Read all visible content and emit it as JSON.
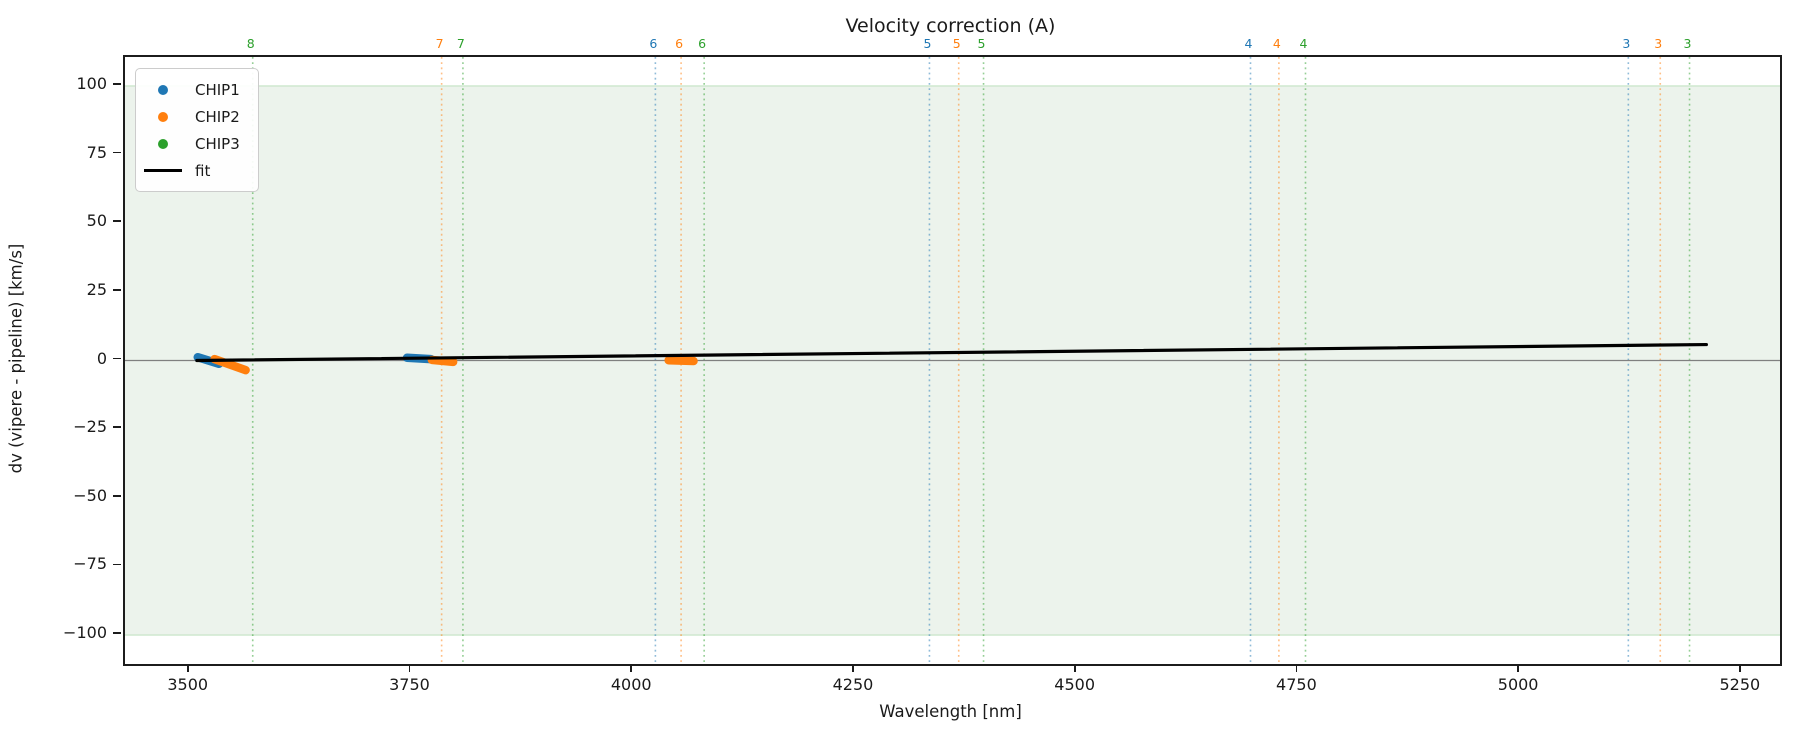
{
  "chart_data": {
    "type": "scatter",
    "title": "Velocity correction (A)",
    "xlabel": "Wavelength [nm]",
    "ylabel": "dv (vipere - pipeline) [km/s]",
    "xlim": [
      3427,
      5293
    ],
    "ylim": [
      -110.5,
      110.5
    ],
    "xticks": [
      3500,
      3750,
      4000,
      4250,
      4500,
      4750,
      5000,
      5250
    ],
    "yticks": [
      100,
      75,
      50,
      25,
      0,
      -25,
      -50,
      -75,
      -100
    ],
    "grid": false,
    "legend_position": "upper-left",
    "band": {
      "ymin": -100,
      "ymax": 100,
      "fill": "#ecf3ec",
      "edge_color": "#2ca02c",
      "edge_opacity": 0.22
    },
    "zero_line": {
      "y": 0,
      "color": "#808080"
    },
    "series": [
      {
        "name": "CHIP1",
        "color": "#1f77b4",
        "marker": "dot",
        "segments": [
          {
            "x1": 3509,
            "y1": 1.2,
            "x2": 3533,
            "y2": -1.2
          },
          {
            "x1": 3745,
            "y1": 1.0,
            "x2": 3772,
            "y2": 0.5
          }
        ]
      },
      {
        "name": "CHIP2",
        "color": "#ff7f0e",
        "marker": "dot",
        "segments": [
          {
            "x1": 3528,
            "y1": 0.5,
            "x2": 3563,
            "y2": -3.5
          },
          {
            "x1": 3773,
            "y1": 0.2,
            "x2": 3797,
            "y2": -0.5
          },
          {
            "x1": 4040,
            "y1": 0.1,
            "x2": 4068,
            "y2": -0.2
          }
        ]
      },
      {
        "name": "CHIP3",
        "color": "#2ca02c",
        "marker": "dot",
        "segments": []
      }
    ],
    "fit": {
      "name": "fit",
      "color": "#000000",
      "points": [
        [
          3508,
          0.0
        ],
        [
          5210,
          5.8
        ]
      ]
    },
    "order_lines": [
      {
        "label": "8",
        "chip": "CHIP3",
        "wavelength": 3571,
        "color": "#2ca02c"
      },
      {
        "label": "7",
        "chip": "CHIP2",
        "wavelength": 3784,
        "color": "#ff7f0e"
      },
      {
        "label": "7",
        "chip": "CHIP3",
        "wavelength": 3808,
        "color": "#2ca02c"
      },
      {
        "label": "6",
        "chip": "CHIP1",
        "wavelength": 4025,
        "color": "#1f77b4"
      },
      {
        "label": "6",
        "chip": "CHIP2",
        "wavelength": 4054,
        "color": "#ff7f0e"
      },
      {
        "label": "6",
        "chip": "CHIP3",
        "wavelength": 4080,
        "color": "#2ca02c"
      },
      {
        "label": "5",
        "chip": "CHIP1",
        "wavelength": 4334,
        "color": "#1f77b4"
      },
      {
        "label": "5",
        "chip": "CHIP2",
        "wavelength": 4367,
        "color": "#ff7f0e"
      },
      {
        "label": "5",
        "chip": "CHIP3",
        "wavelength": 4395,
        "color": "#2ca02c"
      },
      {
        "label": "4",
        "chip": "CHIP1",
        "wavelength": 4696,
        "color": "#1f77b4"
      },
      {
        "label": "4",
        "chip": "CHIP2",
        "wavelength": 4728,
        "color": "#ff7f0e"
      },
      {
        "label": "4",
        "chip": "CHIP3",
        "wavelength": 4758,
        "color": "#2ca02c"
      },
      {
        "label": "3",
        "chip": "CHIP1",
        "wavelength": 5122,
        "color": "#1f77b4"
      },
      {
        "label": "3",
        "chip": "CHIP2",
        "wavelength": 5158,
        "color": "#ff7f0e"
      },
      {
        "label": "3",
        "chip": "CHIP3",
        "wavelength": 5191,
        "color": "#2ca02c"
      }
    ],
    "legend": [
      {
        "label": "CHIP1",
        "color": "#1f77b4",
        "marker": "dot"
      },
      {
        "label": "CHIP2",
        "color": "#ff7f0e",
        "marker": "dot"
      },
      {
        "label": "CHIP3",
        "color": "#2ca02c",
        "marker": "dot"
      },
      {
        "label": "fit",
        "color": "#000000",
        "marker": "line"
      }
    ]
  }
}
